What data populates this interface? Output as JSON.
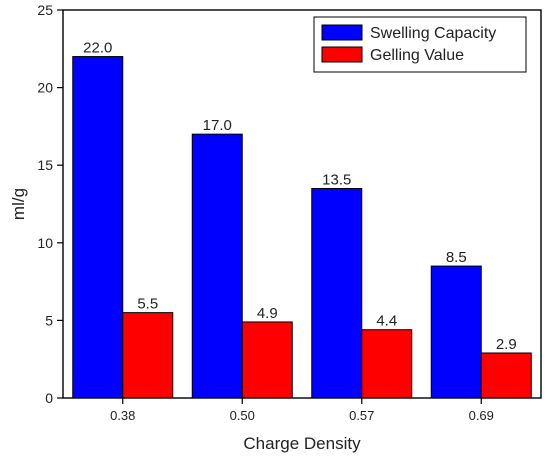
{
  "chart_data": {
    "type": "bar",
    "categories": [
      "0.38",
      "0.50",
      "0.57",
      "0.69"
    ],
    "series": [
      {
        "name": "Swelling Capacity",
        "color": "#0000ff",
        "values": [
          22.0,
          17.0,
          13.5,
          8.5
        ],
        "labels": [
          "22.0",
          "17.0",
          "13.5",
          "8.5"
        ]
      },
      {
        "name": "Gelling Value",
        "color": "#ff0000",
        "values": [
          5.5,
          4.9,
          4.4,
          2.9
        ],
        "labels": [
          "5.5",
          "4.9",
          "4.4",
          "2.9"
        ]
      }
    ],
    "xlabel": "Charge Density",
    "ylabel": "ml/g",
    "ylim": [
      0,
      25
    ],
    "yticks": [
      "0",
      "5",
      "10",
      "15",
      "20",
      "25"
    ],
    "legend_position": "top-right",
    "grid": false
  }
}
